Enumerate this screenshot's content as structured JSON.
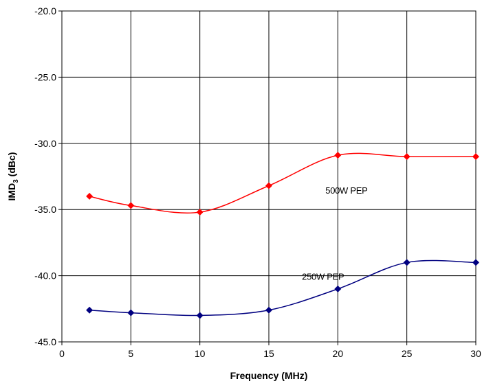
{
  "chart_data": {
    "type": "line",
    "xlabel": "Frequency (MHz)",
    "ylabel": {
      "main": "IMD",
      "sub": "3",
      "unit": " (dBc)"
    },
    "xlim": [
      0,
      30
    ],
    "ylim": [
      -45,
      -20
    ],
    "x_ticks": [
      0,
      5,
      10,
      15,
      20,
      25,
      30
    ],
    "y_ticks": [
      -45.0,
      -40.0,
      -35.0,
      -30.0,
      -25.0,
      -20.0
    ],
    "x_tick_labels": [
      "0",
      "5",
      "10",
      "15",
      "20",
      "25",
      "30"
    ],
    "y_tick_labels": [
      "-45.0",
      "-40.0",
      "-35.0",
      "-30.0",
      "-25.0",
      "-20.0"
    ],
    "grid": true,
    "series": [
      {
        "name": "500W PEP",
        "color": "#ff0000",
        "marker": "diamond",
        "x": [
          2,
          5,
          10,
          15,
          20,
          25,
          30
        ],
        "y": [
          -34.0,
          -34.7,
          -35.2,
          -33.2,
          -30.9,
          -31.0,
          -31.0
        ]
      },
      {
        "name": "250W PEP",
        "color": "#000080",
        "marker": "diamond",
        "x": [
          2,
          5,
          10,
          15,
          20,
          25,
          30
        ],
        "y": [
          -42.6,
          -42.8,
          -43.0,
          -42.6,
          -41.0,
          -39.0,
          -39.0
        ]
      }
    ],
    "annotations": [
      {
        "text": "500W PEP",
        "series": 0
      },
      {
        "text": "250W PEP",
        "series": 1
      }
    ]
  }
}
